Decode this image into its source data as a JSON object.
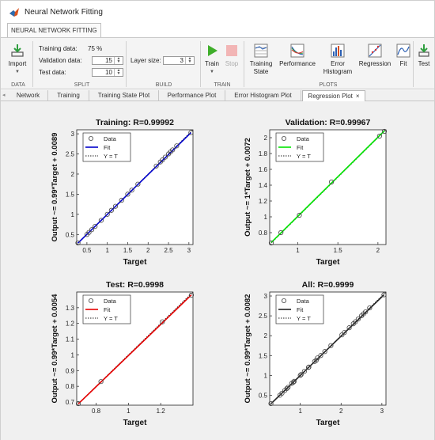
{
  "window": {
    "title": "Neural Network Fitting"
  },
  "ribbon_tab": "NEURAL NETWORK FITTING",
  "ribbon": {
    "data_group": {
      "import_label": "Import",
      "group_label": "DATA"
    },
    "split_group": {
      "training_label": "Training data:",
      "training_value": "75 %",
      "validation_label": "Validation data:",
      "validation_value": "15",
      "test_label": "Test data:",
      "test_value": "10",
      "group_label": "SPLIT"
    },
    "build_group": {
      "layer_label": "Layer size:",
      "layer_value": "3",
      "group_label": "BUILD"
    },
    "train_group": {
      "train_label": "Train",
      "stop_label": "Stop",
      "group_label": "TRAIN"
    },
    "plots_group": {
      "training_state_line1": "Training",
      "training_state_line2": "State",
      "performance_label": "Performance",
      "error_hist_line1": "Error",
      "error_hist_line2": "Histogram",
      "regression_label": "Regression",
      "fit_label": "Fit",
      "group_label": "PLOTS"
    },
    "test_label": "Test"
  },
  "plot_tabs": [
    "Network",
    "Training",
    "Training State Plot",
    "Performance Plot",
    "Error Histogram Plot",
    "Regression Plot"
  ],
  "active_tab_close": "×",
  "colors": {
    "training_fit": "#0000cc",
    "validation_fit": "#00e600",
    "test_fit": "#e60000",
    "all_fit": "#222222",
    "ideal_line": "#222222"
  },
  "chart_data": [
    {
      "type": "scatter",
      "title": "Training: R=0.99992",
      "xlabel": "Target",
      "ylabel": "Output ~= 0.99*Target + 0.0089",
      "xlim": [
        0.25,
        3.1
      ],
      "ylim": [
        0.25,
        3.1
      ],
      "xticks": [
        "0.5",
        "1",
        "1.5",
        "2",
        "2.5",
        "3"
      ],
      "yticks": [
        "0.5",
        "1",
        "1.5",
        "2",
        "2.5",
        "3"
      ],
      "xtick_values": [
        0.5,
        1,
        1.5,
        2,
        2.5,
        3
      ],
      "ytick_values": [
        0.5,
        1,
        1.5,
        2,
        2.5,
        3
      ],
      "legend": [
        "Data",
        "Fit",
        "Y = T"
      ],
      "legend_position": "top-left",
      "fit_color": "#0000cc",
      "fit": {
        "slope": 0.99,
        "intercept": 0.0089
      },
      "x": [
        0.28,
        0.5,
        0.55,
        0.62,
        0.7,
        0.85,
        1.0,
        1.1,
        1.2,
        1.35,
        1.5,
        1.6,
        1.75,
        2.2,
        2.3,
        2.35,
        2.42,
        2.5,
        2.55,
        2.6,
        2.7,
        3.05
      ],
      "y": [
        0.29,
        0.5,
        0.55,
        0.62,
        0.7,
        0.85,
        1.0,
        1.1,
        1.2,
        1.35,
        1.5,
        1.6,
        1.75,
        2.2,
        2.3,
        2.35,
        2.42,
        2.5,
        2.55,
        2.6,
        2.7,
        3.03
      ]
    },
    {
      "type": "scatter",
      "title": "Validation: R=0.99967",
      "xlabel": "Target",
      "ylabel": "Output ~= 1*Target + 0.0072",
      "xlim": [
        0.65,
        2.1
      ],
      "ylim": [
        0.65,
        2.1
      ],
      "xticks": [
        "1",
        "1.5",
        "2"
      ],
      "yticks": [
        "0.8",
        "1",
        "1.2",
        "1.4",
        "1.6",
        "1.8",
        "2"
      ],
      "xtick_values": [
        1,
        1.5,
        2
      ],
      "ytick_values": [
        0.8,
        1,
        1.2,
        1.4,
        1.6,
        1.8,
        2
      ],
      "legend": [
        "Data",
        "Fit",
        "Y = T"
      ],
      "legend_position": "top-left",
      "fit_color": "#00e600",
      "fit": {
        "slope": 1,
        "intercept": 0.0072
      },
      "x": [
        0.67,
        0.79,
        1.02,
        1.42,
        2.02,
        2.08
      ],
      "y": [
        0.67,
        0.8,
        1.02,
        1.44,
        2.02,
        2.08
      ]
    },
    {
      "type": "scatter",
      "title": "Test: R=0.9998",
      "xlabel": "Target",
      "ylabel": "Output ~= 0.99*Target + 0.0054",
      "xlim": [
        0.68,
        1.4
      ],
      "ylim": [
        0.68,
        1.4
      ],
      "xticks": [
        "0.8",
        "1",
        "1.2"
      ],
      "yticks": [
        "0.7",
        "0.8",
        "0.9",
        "1",
        "1.1",
        "1.2",
        "1.3"
      ],
      "xtick_values": [
        0.8,
        1,
        1.2
      ],
      "ytick_values": [
        0.7,
        0.8,
        0.9,
        1,
        1.1,
        1.2,
        1.3
      ],
      "legend": [
        "Data",
        "Fit",
        "Y = T"
      ],
      "legend_position": "top-left",
      "fit_color": "#e60000",
      "fit": {
        "slope": 0.99,
        "intercept": 0.0054
      },
      "x": [
        0.69,
        0.83,
        1.21,
        1.39
      ],
      "y": [
        0.69,
        0.83,
        1.21,
        1.38
      ]
    },
    {
      "type": "scatter",
      "title": "All: R=0.9999",
      "xlabel": "Target",
      "ylabel": "Output ~= 0.99*Target + 0.0082",
      "xlim": [
        0.25,
        3.1
      ],
      "ylim": [
        0.25,
        3.1
      ],
      "xticks": [
        "1",
        "2",
        "3"
      ],
      "yticks": [
        "0.5",
        "1",
        "1.5",
        "2",
        "2.5",
        "3"
      ],
      "xtick_values": [
        1,
        2,
        3
      ],
      "ytick_values": [
        0.5,
        1,
        1.5,
        2,
        2.5,
        3
      ],
      "legend": [
        "Data",
        "Fit",
        "Y = T"
      ],
      "legend_position": "top-left",
      "fit_color": "#222222",
      "fit": {
        "slope": 0.99,
        "intercept": 0.0082
      },
      "x": [
        0.28,
        0.5,
        0.55,
        0.62,
        0.67,
        0.7,
        0.79,
        0.83,
        0.85,
        1.0,
        1.02,
        1.1,
        1.2,
        1.21,
        1.35,
        1.39,
        1.42,
        1.5,
        1.6,
        1.75,
        2.02,
        2.08,
        2.2,
        2.3,
        2.35,
        2.42,
        2.5,
        2.55,
        2.6,
        2.7,
        3.05
      ],
      "y": [
        0.29,
        0.5,
        0.55,
        0.62,
        0.67,
        0.7,
        0.8,
        0.83,
        0.85,
        1.0,
        1.02,
        1.1,
        1.2,
        1.21,
        1.35,
        1.38,
        1.44,
        1.5,
        1.6,
        1.75,
        2.02,
        2.08,
        2.2,
        2.3,
        2.35,
        2.42,
        2.5,
        2.55,
        2.6,
        2.7,
        3.03
      ]
    }
  ]
}
